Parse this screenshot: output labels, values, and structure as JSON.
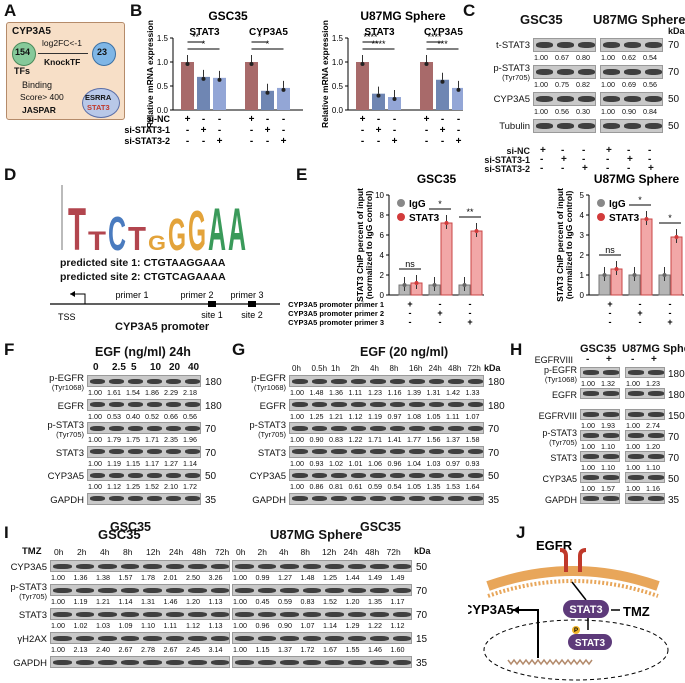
{
  "panel_labels": {
    "A": "A",
    "B": "B",
    "C": "C",
    "D": "D",
    "E": "E",
    "F": "F",
    "G": "G",
    "H": "H",
    "I": "I",
    "J": "J"
  },
  "panelA": {
    "title": "CYP3A5",
    "tfs": "TFs",
    "n_tfs": "154",
    "log2fc": "log2FC<-1",
    "knocktf": "KnockTF",
    "n_knock": "23",
    "binding": "Binding",
    "score": "Score> 400",
    "jaspar": "JASPAR",
    "esrra": "ESRRA",
    "stat3": "STAT3"
  },
  "panelB": {
    "chart_data": [
      {
        "type": "bar",
        "title": "GSC35",
        "ylabel": "Relative mRNA expression",
        "ylim": [
          0,
          1.5
        ],
        "yticks": [
          "0.0",
          "0.5",
          "1.0",
          "1.5"
        ],
        "groups": [
          "STAT3",
          "CYP3A5"
        ],
        "series": [
          {
            "values": [
              1.0,
              0.69,
              0.67
            ]
          },
          {
            "values": [
              1.0,
              0.4,
              0.46
            ]
          }
        ],
        "sig": [
          [
            "**",
            "*"
          ],
          [
            "*",
            "*"
          ]
        ],
        "conditions": [
          {
            "name": "si-NC",
            "marks": [
              "+",
              "-",
              "-",
              "+",
              "-",
              "-"
            ]
          },
          {
            "name": "si-STAT3-1",
            "marks": [
              "-",
              "+",
              "-",
              "-",
              "+",
              "-"
            ]
          },
          {
            "name": "si-STAT3-2",
            "marks": [
              "-",
              "-",
              "+",
              "-",
              "-",
              "+"
            ]
          }
        ]
      },
      {
        "type": "bar",
        "title": "U87MG Sphere",
        "ylabel": "Relative mRNA expression",
        "ylim": [
          0,
          1.5
        ],
        "yticks": [
          "0.0",
          "0.5",
          "1.0",
          "1.5"
        ],
        "groups": [
          "STAT3",
          "CYP3A5"
        ],
        "series": [
          {
            "values": [
              1.0,
              0.34,
              0.27
            ]
          },
          {
            "values": [
              1.0,
              0.63,
              0.46
            ]
          }
        ],
        "sig": [
          [
            "****",
            "****"
          ],
          [
            "****",
            "***"
          ]
        ],
        "conditions": [
          {
            "name": "si-NC",
            "marks": [
              "+",
              "-",
              "-",
              "+",
              "-",
              "-"
            ]
          },
          {
            "name": "si-STAT3-1",
            "marks": [
              "-",
              "+",
              "-",
              "-",
              "+",
              "-"
            ]
          },
          {
            "name": "si-STAT3-2",
            "marks": [
              "-",
              "-",
              "+",
              "-",
              "-",
              "+"
            ]
          }
        ]
      }
    ]
  },
  "panelC": {
    "titles": [
      "GSC35",
      "U87MG Sphere"
    ],
    "rows": [
      {
        "name": "t-STAT3",
        "kda": "70",
        "g": [
          "1.00",
          "0.67",
          "0.80"
        ],
        "u": [
          "1.00",
          "0.62",
          "0.54"
        ]
      },
      {
        "name": "p-STAT3",
        "sub": "(Tyr705)",
        "kda": "70",
        "g": [
          "1.00",
          "0.75",
          "0.82"
        ],
        "u": [
          "1.00",
          "0.69",
          "0.56"
        ]
      },
      {
        "name": "CYP3A5",
        "kda": "50",
        "g": [
          "1.00",
          "0.56",
          "0.30"
        ],
        "u": [
          "1.00",
          "0.90",
          "0.84"
        ]
      },
      {
        "name": "Tubulin",
        "kda": "50"
      }
    ],
    "conditions": [
      {
        "name": "si-NC",
        "marks": [
          "+",
          "-",
          "-",
          "+",
          "-",
          "-"
        ]
      },
      {
        "name": "si-STAT3-1",
        "marks": [
          "-",
          "+",
          "-",
          "-",
          "+",
          "-"
        ]
      },
      {
        "name": "si-STAT3-2",
        "marks": [
          "-",
          "-",
          "+",
          "-",
          "-",
          "+"
        ]
      }
    ]
  },
  "panelD": {
    "motif": "TTCTGGGAA",
    "site1": "predicted site 1: CTGTAAGGAAA",
    "site2": "predicted site 2: CTGTCAGAAAA",
    "primers": [
      "primer 1",
      "primer 2",
      "primer 3"
    ],
    "sites": [
      "site 1",
      "site 2"
    ],
    "tss": "TSS",
    "promoter": "CYP3A5 promoter"
  },
  "panelE": {
    "chart_data": [
      {
        "type": "bar",
        "title": "GSC35",
        "ylabel": "STAT3 ChIP percent of input (normalized to IgG control)",
        "ylim": [
          0,
          10
        ],
        "yticks": [
          "0",
          "2",
          "4",
          "6",
          "8",
          "10"
        ],
        "categories": [
          "primer 1",
          "primer 2",
          "primer 3"
        ],
        "series": [
          {
            "name": "IgG",
            "values": [
              1.0,
              1.0,
              1.0
            ]
          },
          {
            "name": "STAT3",
            "values": [
              1.2,
              7.2,
              6.4
            ]
          }
        ],
        "sig": [
          "ns",
          "*",
          "**"
        ]
      },
      {
        "type": "bar",
        "title": "U87MG Sphere",
        "ylabel": "STAT3 ChIP percent of input (normalized to IgG control)",
        "ylim": [
          0,
          5
        ],
        "yticks": [
          "0",
          "1",
          "2",
          "3",
          "4",
          "5"
        ],
        "categories": [
          "primer 1",
          "primer 2",
          "primer 3"
        ],
        "series": [
          {
            "name": "IgG",
            "values": [
              1.0,
              1.0,
              1.0
            ]
          },
          {
            "name": "STAT3",
            "values": [
              1.3,
              3.8,
              2.9
            ]
          }
        ],
        "sig": [
          "ns",
          "*",
          "*"
        ]
      }
    ],
    "legend": [
      "IgG",
      "STAT3"
    ],
    "primer_rows": [
      {
        "name": "CYP3A5 promoter primer 1",
        "marks": [
          "+",
          "-",
          "-"
        ]
      },
      {
        "name": "CYP3A5 promoter primer 2",
        "marks": [
          "-",
          "+",
          "-"
        ]
      },
      {
        "name": "CYP3A5 promoter primer 3",
        "marks": [
          "-",
          "-",
          "+"
        ]
      }
    ]
  },
  "panelF": {
    "title": "EGF (ng/ml) 24h",
    "cols": [
      "0",
      "2.5",
      "5",
      "10",
      "20",
      "40"
    ],
    "cell": "GSC35",
    "rows": [
      {
        "name": "p-EGFR",
        "sub": "(Tyr1068)",
        "kda": "180",
        "v": [
          "1.00",
          "1.61",
          "1.54",
          "1.86",
          "2.29",
          "2.18"
        ]
      },
      {
        "name": "EGFR",
        "kda": "180",
        "v": [
          "1.00",
          "0.53",
          "0.40",
          "0.52",
          "0.66",
          "0.56"
        ]
      },
      {
        "name": "p-STAT3",
        "sub": "(Tyr705)",
        "kda": "70",
        "v": [
          "1.00",
          "1.79",
          "1.75",
          "1.71",
          "2.35",
          "1.96"
        ]
      },
      {
        "name": "STAT3",
        "kda": "70",
        "v": [
          "1.00",
          "1.19",
          "1.15",
          "1.17",
          "1.27",
          "1.14"
        ]
      },
      {
        "name": "CYP3A5",
        "kda": "50",
        "v": [
          "1.00",
          "1.12",
          "1.25",
          "1.52",
          "2.10",
          "1.72"
        ]
      },
      {
        "name": "GAPDH",
        "kda": "35"
      }
    ]
  },
  "panelG": {
    "title": "EGF (20 ng/ml)",
    "cols": [
      "0h",
      "0.5h",
      "1h",
      "2h",
      "4h",
      "8h",
      "16h",
      "24h",
      "48h",
      "72h"
    ],
    "cell": "GSC35",
    "rows": [
      {
        "name": "p-EGFR",
        "sub": "(Tyr1068)",
        "kda": "180",
        "v": [
          "1.00",
          "1.48",
          "1.36",
          "1.11",
          "1.23",
          "1.16",
          "1.39",
          "1.31",
          "1.42",
          "1.33"
        ]
      },
      {
        "name": "EGFR",
        "kda": "180",
        "v": [
          "1.00",
          "1.25",
          "1.21",
          "1.12",
          "1.19",
          "0.97",
          "1.08",
          "1.05",
          "1.11",
          "1.07"
        ]
      },
      {
        "name": "p-STAT3",
        "sub": "(Tyr705)",
        "kda": "70",
        "v": [
          "1.00",
          "0.90",
          "0.83",
          "1.22",
          "1.71",
          "1.41",
          "1.77",
          "1.56",
          "1.37",
          "1.58"
        ]
      },
      {
        "name": "STAT3",
        "kda": "70",
        "v": [
          "1.00",
          "0.93",
          "1.02",
          "1.01",
          "1.06",
          "0.96",
          "1.04",
          "1.03",
          "0.97",
          "0.93"
        ]
      },
      {
        "name": "CYP3A5",
        "kda": "50",
        "v": [
          "1.00",
          "0.86",
          "0.81",
          "0.61",
          "0.59",
          "0.54",
          "1.05",
          "1.35",
          "1.53",
          "1.64"
        ]
      },
      {
        "name": "GAPDH",
        "kda": "35"
      }
    ]
  },
  "panelH": {
    "titles": [
      "GSC35",
      "U87MG Sphere"
    ],
    "egfrviii": "EGFRVIII",
    "marks": [
      "-",
      "+",
      "-",
      "+"
    ],
    "rows": [
      {
        "name": "p-EGFR",
        "sub": "(Tyr1068)",
        "kda": "180",
        "v": [
          "1.00",
          "1.32",
          "1.00",
          "1.23"
        ]
      },
      {
        "name": "EGFR",
        "kda": "180"
      },
      {
        "name": "EGFRVIII",
        "kda": "150",
        "v": [
          "1.00",
          "1.93",
          "1.00",
          "2.74"
        ]
      },
      {
        "name": "p-STAT3",
        "sub": "(Tyr705)",
        "kda": "70",
        "v": [
          "1.00",
          "1.10",
          "1.00",
          "1.20"
        ]
      },
      {
        "name": "STAT3",
        "kda": "70",
        "v": [
          "1.00",
          "1.10",
          "1.00",
          "1.10"
        ]
      },
      {
        "name": "CYP3A5",
        "kda": "50",
        "v": [
          "1.00",
          "1.57",
          "1.00",
          "1.16"
        ]
      },
      {
        "name": "GAPDH",
        "kda": "35"
      }
    ]
  },
  "panelI": {
    "tmz": "TMZ",
    "titles": [
      "GSC35",
      "U87MG Sphere"
    ],
    "cols": [
      "0h",
      "2h",
      "4h",
      "8h",
      "12h",
      "24h",
      "48h",
      "72h"
    ],
    "rows": [
      {
        "name": "CYP3A5",
        "kda": "50",
        "g": [
          "1.00",
          "1.36",
          "1.38",
          "1.57",
          "1.78",
          "2.01",
          "2.50",
          "3.26"
        ],
        "u": [
          "1.00",
          "0.99",
          "1.27",
          "1.48",
          "1.25",
          "1.44",
          "1.49",
          "1.49"
        ]
      },
      {
        "name": "p-STAT3",
        "sub": "(Tyr705)",
        "kda": "70",
        "g": [
          "1.00",
          "1.19",
          "1.21",
          "1.14",
          "1.31",
          "1.46",
          "1.20",
          "1.13"
        ],
        "u": [
          "1.00",
          "0.45",
          "0.59",
          "0.83",
          "1.52",
          "1.20",
          "1.35",
          "1.17"
        ]
      },
      {
        "name": "STAT3",
        "kda": "70",
        "g": [
          "1.00",
          "1.02",
          "1.03",
          "1.09",
          "1.10",
          "1.11",
          "1.12",
          "1.13"
        ],
        "u": [
          "1.00",
          "0.96",
          "0.90",
          "1.07",
          "1.14",
          "1.29",
          "1.22",
          "1.12"
        ]
      },
      {
        "name": "γH2AX",
        "kda": "15",
        "g": [
          "1.00",
          "2.13",
          "2.40",
          "2.67",
          "2.78",
          "2.67",
          "2.45",
          "3.14"
        ],
        "u": [
          "1.00",
          "1.15",
          "1.37",
          "1.72",
          "1.67",
          "1.55",
          "1.46",
          "1.60"
        ]
      },
      {
        "name": "GAPDH",
        "kda": "35"
      }
    ]
  },
  "panelJ": {
    "egfr": "EGFR",
    "stat3": "STAT3",
    "p": "P",
    "tmz": "TMZ",
    "cyp3a5": "CYP3A5"
  },
  "kda_label": "kDa"
}
